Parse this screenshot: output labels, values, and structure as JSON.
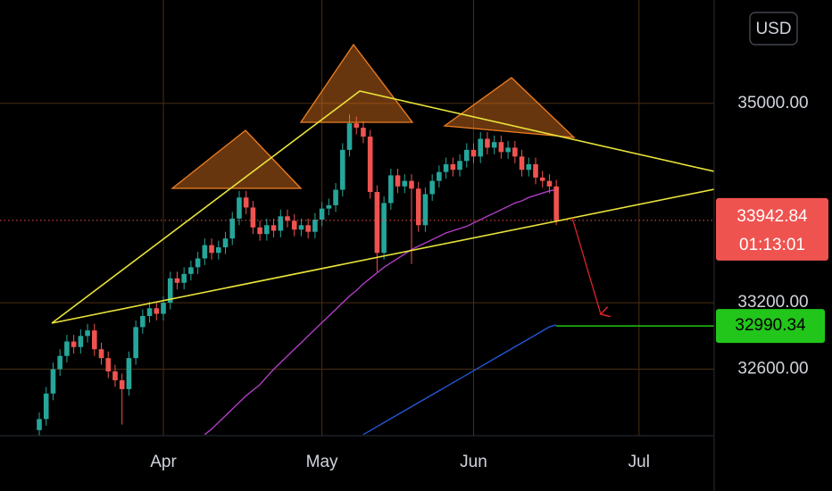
{
  "chart_data": {
    "type": "candlestick",
    "open": [
      32050,
      32150,
      32380,
      32600,
      32720,
      32850,
      32800,
      32900,
      32950,
      32780,
      32700,
      32580,
      32500,
      32420,
      32700,
      32980,
      33080,
      33150,
      33100,
      33200,
      33420,
      33380,
      33460,
      33520,
      33600,
      33720,
      33650,
      33700,
      33780,
      33960,
      34150,
      34060,
      33880,
      33820,
      33900,
      33850,
      33980,
      33940,
      33860,
      33900,
      33840,
      33950,
      34050,
      34080,
      34220,
      34580,
      34820,
      34780,
      34700,
      34200,
      33650,
      34100,
      34350,
      34250,
      34300,
      34230,
      33900,
      34180,
      34300,
      34380,
      34450,
      34400,
      34480,
      34580,
      34520,
      34680,
      34600,
      34650,
      34560,
      34600,
      34520,
      34400,
      34450,
      34330,
      34300,
      34250
    ],
    "high": [
      32210,
      32440,
      32660,
      32780,
      32910,
      32910,
      32960,
      33010,
      33010,
      32840,
      32760,
      32640,
      32560,
      32760,
      33040,
      33140,
      33210,
      33210,
      33260,
      33480,
      33480,
      33520,
      33580,
      33660,
      33780,
      33780,
      33760,
      33840,
      34020,
      34210,
      34210,
      34120,
      33940,
      33960,
      33960,
      34040,
      34040,
      34000,
      33960,
      33960,
      34010,
      34110,
      34140,
      34280,
      34640,
      34900,
      34880,
      34840,
      34760,
      34260,
      34160,
      34410,
      34410,
      34360,
      34360,
      34290,
      34240,
      34360,
      34440,
      34510,
      34510,
      34540,
      34640,
      34640,
      34740,
      34740,
      34710,
      34710,
      34660,
      34660,
      34580,
      34510,
      34510,
      34390,
      34360,
      34310
    ],
    "low": [
      31990,
      32090,
      32320,
      32540,
      32660,
      32740,
      32740,
      32840,
      32720,
      32640,
      32520,
      32440,
      32100,
      32360,
      32640,
      32920,
      33020,
      33040,
      33040,
      33140,
      33320,
      33320,
      33400,
      33460,
      33540,
      33590,
      33590,
      33640,
      33720,
      33900,
      34000,
      33820,
      33760,
      33760,
      33790,
      33790,
      33880,
      33800,
      33800,
      33780,
      33780,
      33890,
      33990,
      34020,
      34160,
      34520,
      34720,
      34640,
      34140,
      33480,
      33590,
      34040,
      34190,
      34190,
      33550,
      33840,
      33840,
      34120,
      34240,
      34320,
      34340,
      34340,
      34420,
      34460,
      34460,
      34540,
      34540,
      34500,
      34500,
      34460,
      34340,
      34340,
      34270,
      34240,
      34190,
      33900
    ],
    "close": [
      32150,
      32380,
      32600,
      32720,
      32850,
      32800,
      32900,
      32950,
      32780,
      32700,
      32580,
      32500,
      32420,
      32700,
      32980,
      33080,
      33150,
      33100,
      33200,
      33420,
      33380,
      33460,
      33520,
      33600,
      33720,
      33650,
      33700,
      33780,
      33960,
      34150,
      34060,
      33880,
      33820,
      33900,
      33850,
      33980,
      33940,
      33860,
      33900,
      33840,
      33950,
      34050,
      34080,
      34220,
      34580,
      34820,
      34780,
      34700,
      34200,
      33650,
      34100,
      34350,
      34250,
      34300,
      34230,
      33900,
      34180,
      34300,
      34380,
      34450,
      34400,
      34480,
      34580,
      34520,
      34680,
      34600,
      34650,
      34560,
      34600,
      34520,
      34400,
      34450,
      34330,
      34300,
      34250,
      33942.84
    ],
    "up_color": "#26a69a",
    "down_color": "#ef5350",
    "overlays": [
      {
        "color": "#b03cc4",
        "values": [
          null,
          null,
          null,
          null,
          null,
          null,
          null,
          null,
          null,
          null,
          null,
          null,
          null,
          null,
          null,
          null,
          null,
          null,
          null,
          null,
          null,
          null,
          null,
          null,
          32010,
          32060,
          32120,
          32180,
          32240,
          32300,
          32360,
          32410,
          32460,
          32530,
          32600,
          32660,
          32720,
          32780,
          32840,
          32900,
          32960,
          33020,
          33080,
          33140,
          33200,
          33260,
          33310,
          33370,
          33420,
          33470,
          33520,
          33560,
          33600,
          33640,
          33680,
          33710,
          33740,
          33770,
          33800,
          33830,
          33850,
          33870,
          33890,
          33920,
          33950,
          33980,
          34010,
          34040,
          34070,
          34100,
          34120,
          34150,
          34170,
          34190,
          34210,
          34220
        ]
      },
      {
        "color": "#2356d6",
        "values": [
          null,
          null,
          null,
          null,
          null,
          null,
          null,
          null,
          null,
          null,
          null,
          null,
          null,
          null,
          null,
          null,
          null,
          null,
          null,
          null,
          null,
          null,
          null,
          null,
          null,
          null,
          null,
          null,
          null,
          null,
          null,
          null,
          null,
          null,
          null,
          null,
          null,
          null,
          null,
          null,
          null,
          null,
          null,
          null,
          null,
          null,
          null,
          32010,
          32046,
          32082,
          32118,
          32154,
          32190,
          32226,
          32262,
          32298,
          32334,
          32370,
          32406,
          32442,
          32478,
          32514,
          32550,
          32586,
          32622,
          32658,
          32694,
          32730,
          32766,
          32802,
          32838,
          32874,
          32910,
          32946,
          32982,
          33000
        ]
      }
    ],
    "xlim": [
      -5.7,
      97.9
    ],
    "ylim": [
      32000,
      35933
    ],
    "xticks": [
      {
        "value": 18,
        "label": "Apr"
      },
      {
        "value": 41,
        "label": "May"
      },
      {
        "value": 63,
        "label": "Jun"
      },
      {
        "value": 87,
        "label": "Jul"
      }
    ],
    "yticks": [
      {
        "value": 35000,
        "label": "35000.00"
      },
      {
        "value": 33200,
        "label": "33200.00"
      },
      {
        "value": 32600,
        "label": "32600.00"
      }
    ],
    "grid": true,
    "grid_color": "#4a2e12",
    "countdown": "01:13:01",
    "target_level": 32990.34,
    "target_color": "#22c51a",
    "currency": "USD"
  }
}
